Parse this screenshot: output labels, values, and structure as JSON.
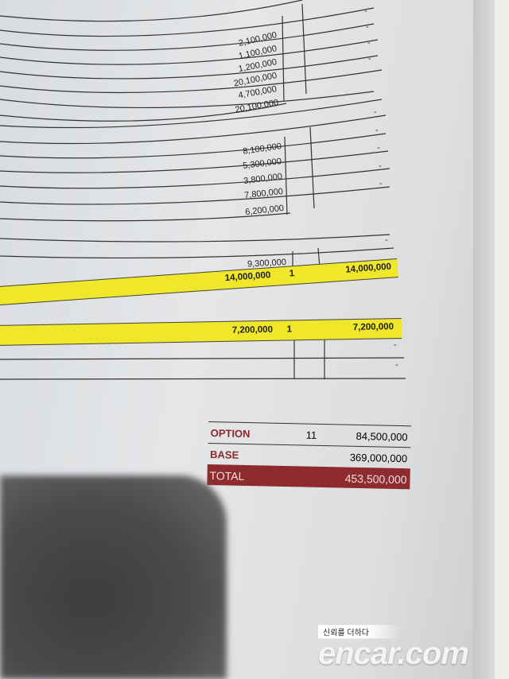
{
  "table": {
    "group1": [
      "2,100,000",
      "1,100,000",
      "1,200,000",
      "20,100,000",
      "4,700,000",
      "20,100,000"
    ],
    "group2": [
      "8,100,000",
      "5,300,000",
      "3,800,000",
      "7,800,000",
      "6,200,000"
    ],
    "group3_amount": "9,300,000",
    "highlight1": {
      "amount": "14,000,000",
      "qty": "1",
      "total": "14,000,000"
    },
    "highlight2": {
      "amount": "7,200,000",
      "qty": "1",
      "total": "7,200,000"
    },
    "dash": "-",
    "highlight_color": "#f0e62a"
  },
  "summary": {
    "option_label": "OPTION",
    "option_count": "11",
    "option_amount": "84,500,000",
    "base_label": "BASE",
    "base_amount": "369,000,000",
    "total_label": "TOTAL",
    "total_amount": "453,500,000",
    "label_color": "#8a2a2c",
    "total_bg": "#8e2b2f"
  },
  "watermark": {
    "tagline": "신뢰를 더하다",
    "logo": "encar.com"
  }
}
